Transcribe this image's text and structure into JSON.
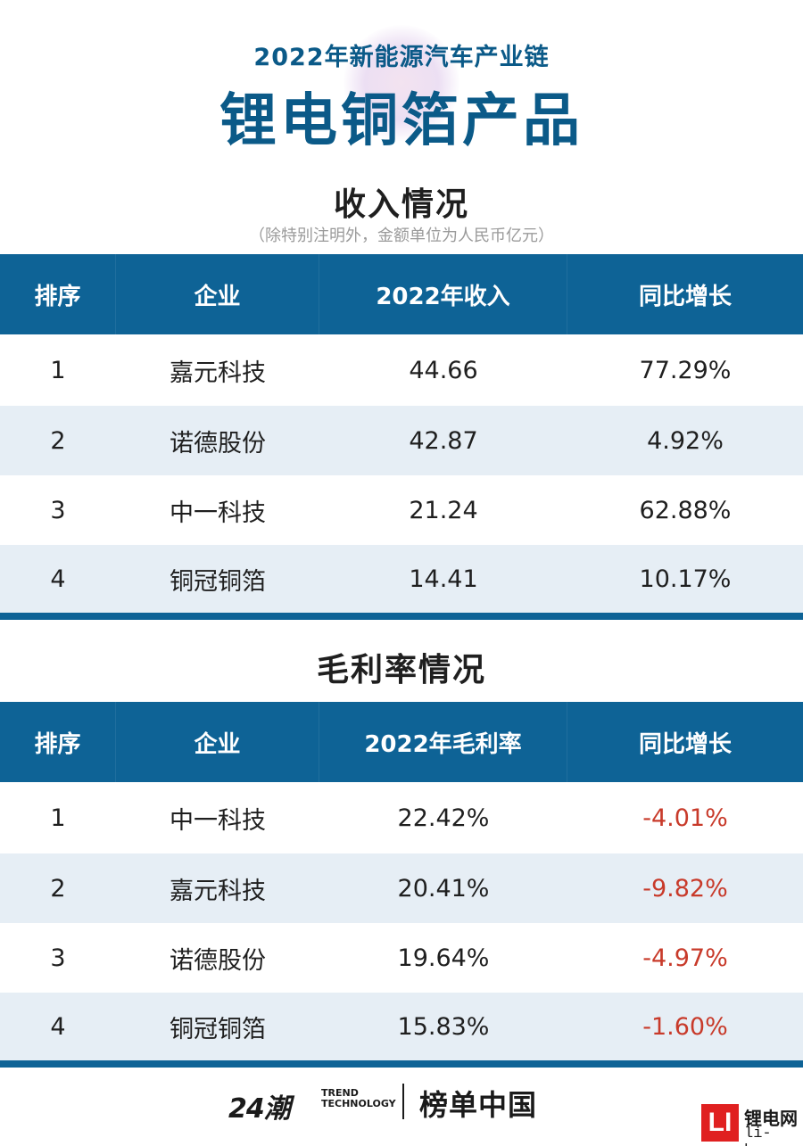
{
  "header": {
    "supertitle": "2022年新能源汽车产业链",
    "title": "锂电铜箔产品"
  },
  "revenue": {
    "title": "收入情况",
    "note": "（除特别注明外，金额单位为人民币亿元）",
    "columns": [
      "排序",
      "企业",
      "2022年收入",
      "同比增长"
    ],
    "rows": [
      {
        "rank": "1",
        "company": "嘉元科技",
        "value": "44.66",
        "growth": "77.29%"
      },
      {
        "rank": "2",
        "company": "诺德股份",
        "value": "42.87",
        "growth": "4.92%"
      },
      {
        "rank": "3",
        "company": "中一科技",
        "value": "21.24",
        "growth": "62.88%"
      },
      {
        "rank": "4",
        "company": "铜冠铜箔",
        "value": "14.41",
        "growth": "10.17%"
      }
    ]
  },
  "margin": {
    "title": "毛利率情况",
    "columns": [
      "排序",
      "企业",
      "2022年毛利率",
      "同比增长"
    ],
    "rows": [
      {
        "rank": "1",
        "company": "中一科技",
        "value": "22.42%",
        "growth": "-4.01%"
      },
      {
        "rank": "2",
        "company": "嘉元科技",
        "value": "20.41%",
        "growth": "-9.82%"
      },
      {
        "rank": "3",
        "company": "诺德股份",
        "value": "19.64%",
        "growth": "-4.97%"
      },
      {
        "rank": "4",
        "company": "铜冠铜箔",
        "value": "15.83%",
        "growth": "-1.60%"
      }
    ]
  },
  "footer": {
    "brand_24": "24潮",
    "trend_line1": "TREND",
    "trend_line2": "TECHNOLOGY",
    "bangdan": "榜单中国",
    "li_badge": "LI",
    "li_name": "锂电网",
    "li_url": "li-b.cn"
  },
  "colors": {
    "primary": "#0e6396",
    "title": "#0b5a88",
    "row_alt": "#e6eef5",
    "negative": "#c83a2a",
    "badge": "#e02020"
  }
}
